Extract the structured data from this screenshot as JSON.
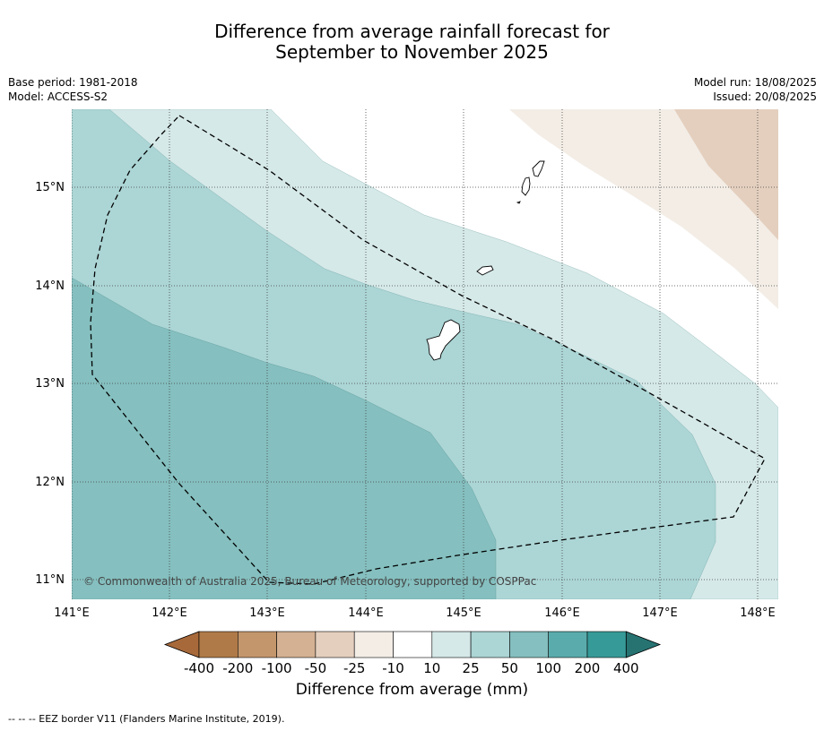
{
  "title": {
    "line1": "Difference from average rainfall forecast for",
    "line2": "September to November 2025"
  },
  "meta": {
    "base_period": "Base period: 1981-2018",
    "model": "Model: ACCESS-S2",
    "model_run": "Model run: 18/08/2025",
    "issued": "Issued: 20/08/2025"
  },
  "map": {
    "lat_ticks": [
      "15°N",
      "14°N",
      "13°N",
      "12°N",
      "11°N"
    ],
    "lon_ticks": [
      "141°E",
      "142°E",
      "143°E",
      "144°E",
      "145°E",
      "146°E",
      "147°E",
      "148°E"
    ],
    "copyright": "© Commonwealth of Australia 2025, Bureau of Meteorology, supported by COSPPac",
    "feature": "EEZ border dashed outline, Northern Mariana Islands / Guam"
  },
  "colorbar": {
    "ticks": [
      "-400",
      "-200",
      "-100",
      "-50",
      "-25",
      "-10",
      "10",
      "25",
      "50",
      "100",
      "200",
      "400"
    ],
    "colors": [
      "#a8693a",
      "#b07a48",
      "#c4966c",
      "#d4b193",
      "#e4cfbe",
      "#f3ede6",
      "#ffffff",
      "#d5e9e8",
      "#acd5d5",
      "#85bfbf",
      "#5aacac",
      "#369a98",
      "#267372"
    ],
    "label": "Difference from average (mm)"
  },
  "legend_note": "-- -- -- EEZ border V11 (Flanders Marine Institute, 2019)."
}
